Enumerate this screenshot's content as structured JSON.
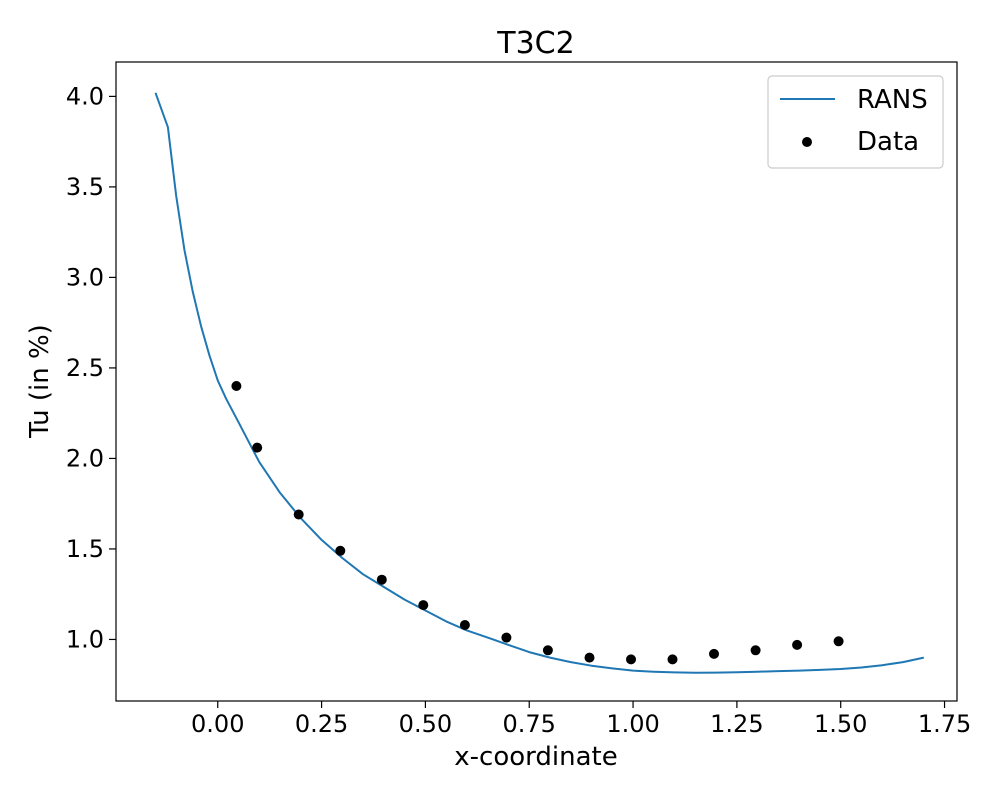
{
  "chart_data": {
    "type": "line",
    "title": "T3C2",
    "xlabel": "x-coordinate",
    "ylabel": "Tu (in %)",
    "xlim": [
      -0.245,
      1.78
    ],
    "ylim": [
      0.66,
      4.19
    ],
    "xticks": [
      0.0,
      0.25,
      0.5,
      0.75,
      1.0,
      1.25,
      1.5,
      1.75
    ],
    "xtick_labels": [
      "0.00",
      "0.25",
      "0.50",
      "0.75",
      "1.00",
      "1.25",
      "1.50",
      "1.75"
    ],
    "yticks": [
      1.0,
      1.5,
      2.0,
      2.5,
      3.0,
      3.5,
      4.0
    ],
    "ytick_labels": [
      "1.0",
      "1.5",
      "2.0",
      "2.5",
      "3.0",
      "3.5",
      "4.0"
    ],
    "grid": false,
    "legend_position": "top-right",
    "series": [
      {
        "name": "RANS",
        "kind": "line",
        "color": "#1f77b4",
        "x": [
          -0.15,
          -0.12,
          -0.1,
          -0.08,
          -0.06,
          -0.04,
          -0.02,
          0.0,
          0.02,
          0.05,
          0.1,
          0.15,
          0.2,
          0.25,
          0.3,
          0.35,
          0.4,
          0.45,
          0.5,
          0.55,
          0.6,
          0.65,
          0.7,
          0.75,
          0.8,
          0.85,
          0.9,
          0.95,
          1.0,
          1.05,
          1.1,
          1.15,
          1.2,
          1.25,
          1.3,
          1.35,
          1.4,
          1.45,
          1.5,
          1.55,
          1.6,
          1.65,
          1.7
        ],
        "y": [
          4.02,
          3.83,
          3.45,
          3.15,
          2.92,
          2.73,
          2.57,
          2.43,
          2.33,
          2.2,
          1.98,
          1.81,
          1.67,
          1.55,
          1.45,
          1.36,
          1.29,
          1.22,
          1.16,
          1.1,
          1.05,
          1.01,
          0.97,
          0.93,
          0.9,
          0.875,
          0.855,
          0.84,
          0.828,
          0.822,
          0.818,
          0.816,
          0.817,
          0.819,
          0.822,
          0.825,
          0.828,
          0.832,
          0.837,
          0.845,
          0.858,
          0.875,
          0.9
        ]
      },
      {
        "name": "Data",
        "kind": "scatter",
        "color": "#000000",
        "x": [
          0.045,
          0.095,
          0.195,
          0.295,
          0.395,
          0.495,
          0.595,
          0.695,
          0.795,
          0.895,
          0.995,
          1.095,
          1.195,
          1.295,
          1.395,
          1.495
        ],
        "y": [
          2.4,
          2.06,
          1.69,
          1.49,
          1.33,
          1.19,
          1.08,
          1.01,
          0.94,
          0.9,
          0.89,
          0.89,
          0.92,
          0.94,
          0.97,
          0.99
        ]
      }
    ]
  }
}
